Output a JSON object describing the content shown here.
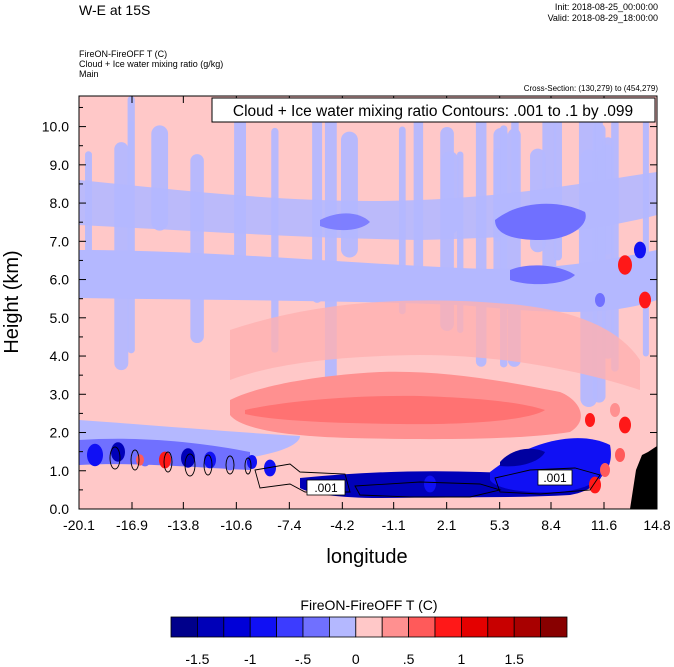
{
  "header": {
    "title": "W-E at 15S",
    "init": "Init: 2018-08-25_00:00:00",
    "valid": "Valid: 2018-08-29_18:00:00",
    "field1": "FireON-FireOFF T   (C)",
    "field2": "Cloud + Ice water mixing ratio   (g/kg)",
    "field3": "Main",
    "cross_section": "Cross-Section: (130,279) to (454,279)"
  },
  "chart_data": {
    "type": "heatmap",
    "title": "",
    "contour_label": "Cloud + Ice water mixing ratio Contours: .001 to .1 by .099",
    "xlabel": "longitude",
    "ylabel": "Height (km)",
    "x_ticks": [
      "-20.1",
      "-16.9",
      "-13.8",
      "-10.6",
      "-7.4",
      "-4.2",
      "-1.1",
      "2.1",
      "5.3",
      "8.4",
      "11.6",
      "14.8"
    ],
    "y_ticks": [
      "0.0",
      "1.0",
      "2.0",
      "3.0",
      "4.0",
      "5.0",
      "6.0",
      "7.0",
      "8.0",
      "9.0",
      "10.0"
    ],
    "xlim": [
      -20.1,
      14.8
    ],
    "ylim": [
      0,
      10.8
    ],
    "contour_labels": [
      ".001",
      ".001"
    ],
    "colorbar": {
      "title": "FireON-FireOFF T  (C)",
      "tick_labels": [
        "-1.5",
        "-1",
        "-.5",
        "0",
        ".5",
        "1",
        "1.5"
      ],
      "colors": [
        "#00008b",
        "#0000b8",
        "#0000d8",
        "#1010f4",
        "#3c3cff",
        "#7070ff",
        "#b4b8ff",
        "#ffc8c8",
        "#ff9090",
        "#ff5a5a",
        "#ff1818",
        "#e40000",
        "#c80000",
        "#a80000",
        "#880000"
      ]
    }
  }
}
